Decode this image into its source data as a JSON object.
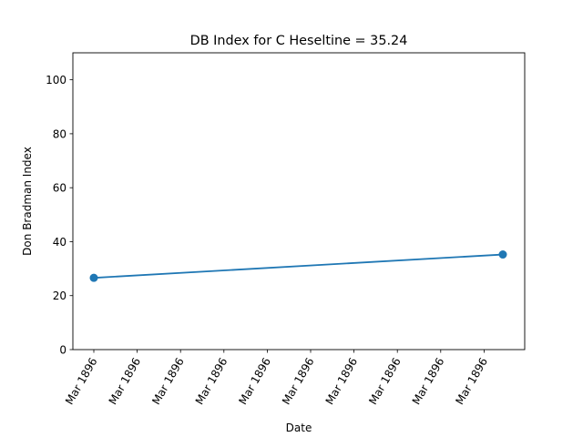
{
  "chart_data": {
    "type": "line",
    "title": "DB Index for C Heseltine = 35.24",
    "xlabel": "Date",
    "ylabel": "Don Bradman Index",
    "x_tick_labels": [
      "Mar 1896",
      "Mar 1896",
      "Mar 1896",
      "Mar 1896",
      "Mar 1896",
      "Mar 1896",
      "Mar 1896",
      "Mar 1896",
      "Mar 1896",
      "Mar 1896"
    ],
    "ylim": [
      0,
      110
    ],
    "y_ticks": [
      0,
      20,
      40,
      60,
      80,
      100
    ],
    "grid": false,
    "series": [
      {
        "x": [
          "Mar 1896",
          "Mar 1896"
        ],
        "values": [
          26.6,
          35.24
        ],
        "color": "#1f77b4"
      }
    ]
  }
}
